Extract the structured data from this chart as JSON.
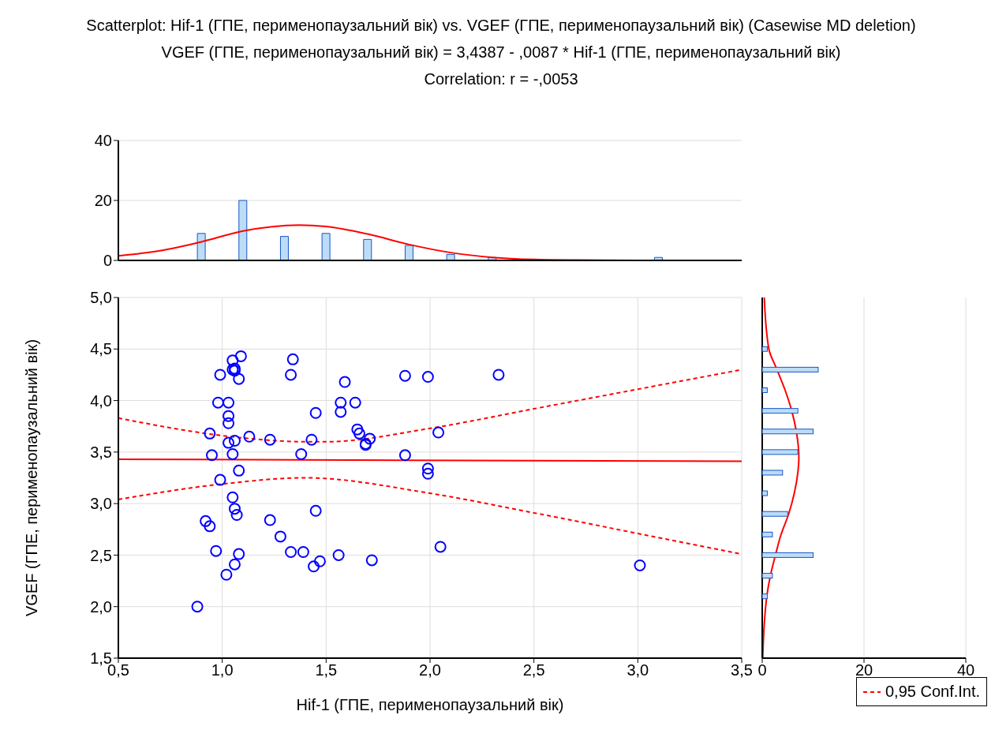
{
  "chart_data": [
    {
      "type": "bar",
      "title": "Scatterplot: Hif-1 (ГПЕ, перименопаузальний вік) vs. VGEF (ГПЕ, перименопаузальний вік) (Casewise MD deletion)",
      "subtitle": "VGEF (ГПЕ, перименопаузальний вік) = 3,4387 - ,0087  * Hif-1 (ГПЕ, перименопаузальний вік)",
      "annotations": [
        "Correlation: r = -,0053"
      ],
      "xlim": [
        0.5,
        3.5
      ],
      "xticks": [
        {
          "value": 0.5,
          "label": null
        },
        {
          "value": 1,
          "label": null
        },
        {
          "value": 1.5,
          "label": null
        },
        {
          "value": 2,
          "label": null
        },
        {
          "value": 2.5,
          "label": null
        },
        {
          "value": 3,
          "label": null
        },
        {
          "value": 3.5,
          "label": null
        }
      ],
      "ylim": [
        0,
        40
      ],
      "yticks": [
        0,
        20,
        40
      ],
      "grid": "y",
      "tick_labels": "y",
      "series": [
        {
          "color": "#bcdcf7",
          "x": [
            0.9,
            1.1,
            1.3,
            1.5,
            1.7,
            1.9,
            2.1,
            2.3,
            3.1
          ],
          "values": [
            9,
            20,
            8,
            9,
            7,
            5,
            2,
            1,
            1
          ]
        },
        {
          "type": "line",
          "color": "#ff0000",
          "x": [
            0.5,
            0.7,
            0.9,
            1.1,
            1.37,
            1.5,
            1.7,
            1.9,
            2.1,
            2.3,
            2.5,
            2.7,
            3.0,
            3.5
          ],
          "values": [
            1.5,
            3.2,
            6.2,
            9.8,
            11.8,
            11.3,
            8.8,
            5.3,
            2.6,
            1.0,
            0.3,
            0.1,
            0,
            0
          ]
        }
      ]
    },
    {
      "type": "scatter",
      "xlabel": "Hif-1 (ГПЕ, перименопаузальний вік)",
      "ylabel": "VGEF (ГПЕ, перименопаузальний вік)",
      "xlim": [
        0.5,
        3.5
      ],
      "xticks": [
        {
          "value": 0.5,
          "label": "0,5"
        },
        {
          "value": 1,
          "label": "1,0"
        },
        {
          "value": 1.5,
          "label": "1,5"
        },
        {
          "value": 2,
          "label": "2,0"
        },
        {
          "value": 2.5,
          "label": "2,5"
        },
        {
          "value": 3,
          "label": "3,0"
        },
        {
          "value": 3.5,
          "label": "3,5"
        }
      ],
      "ylim": [
        1.5,
        5
      ],
      "yticks": [
        {
          "value": 1.5,
          "label": "1,5"
        },
        {
          "value": 2,
          "label": "2,0"
        },
        {
          "value": 2.5,
          "label": "2,5"
        },
        {
          "value": 3,
          "label": "3,0"
        },
        {
          "value": 3.5,
          "label": "3,5"
        },
        {
          "value": 4,
          "label": "4,0"
        },
        {
          "value": 4.5,
          "label": "4,5"
        },
        {
          "value": 5,
          "label": "5,0"
        }
      ],
      "grid": true,
      "legend": "bottom right",
      "series": [
        {
          "color": "#0000ff",
          "marker": "circle",
          "x": [
            1.05,
            1.09,
            1.05,
            1.06,
            1.06,
            0.99,
            1.08,
            1.34,
            1.33,
            1.59,
            0.98,
            1.03,
            1.57,
            1.57,
            1.45,
            1.03,
            1.03,
            0.94,
            1.13,
            1.23,
            1.43,
            1.03,
            1.06,
            1.05,
            0.95,
            1.38,
            1.08,
            0.99,
            1.05,
            1.06,
            1.07,
            1.45,
            0.92,
            0.94,
            1.23,
            1.28,
            0.97,
            1.08,
            1.06,
            1.02,
            1.33,
            1.39,
            1.44,
            1.47,
            1.56,
            0.88,
            1.64,
            1.88,
            1.99,
            2.33,
            1.65,
            1.66,
            1.71,
            1.69,
            1.69,
            2.04,
            1.88,
            1.99,
            1.99,
            2.05,
            1.72,
            3.01
          ],
          "values": [
            4.39,
            4.43,
            4.3,
            4.31,
            4.29,
            4.25,
            4.21,
            4.4,
            4.25,
            4.18,
            3.98,
            3.98,
            3.98,
            3.89,
            3.88,
            3.85,
            3.78,
            3.68,
            3.65,
            3.62,
            3.62,
            3.59,
            3.61,
            3.48,
            3.47,
            3.48,
            3.32,
            3.23,
            3.06,
            2.95,
            2.89,
            2.93,
            2.83,
            2.78,
            2.84,
            2.68,
            2.54,
            2.51,
            2.41,
            2.31,
            2.53,
            2.53,
            2.39,
            2.44,
            2.5,
            2.0,
            3.98,
            4.24,
            4.23,
            4.25,
            3.72,
            3.68,
            3.63,
            3.58,
            3.57,
            3.69,
            3.47,
            3.34,
            3.29,
            2.58,
            2.45,
            2.4
          ]
        },
        {
          "type": "line",
          "color": "#ff0000",
          "x": [
            0.5,
            3.5
          ],
          "values": [
            3.43,
            3.41
          ]
        },
        {
          "type": "line",
          "name": "0,95 Conf.Int.",
          "color": "#ff0000",
          "line_style": "dashed",
          "x": [
            0.5,
            1.0,
            1.4,
            1.5,
            2.0,
            2.5,
            3.0,
            3.5
          ],
          "values": [
            3.83,
            3.66,
            3.6,
            3.6,
            3.73,
            3.92,
            4.11,
            4.3
          ]
        },
        {
          "type": "line",
          "color": "#ff0000",
          "line_style": "dashed",
          "x": [
            0.5,
            1.0,
            1.4,
            2.0,
            2.5,
            3.0,
            3.5
          ],
          "values": [
            3.04,
            3.19,
            3.25,
            3.1,
            2.91,
            2.71,
            2.51
          ]
        }
      ]
    },
    {
      "type": "bar",
      "orientation": "horizontal",
      "xlim": [
        0,
        40
      ],
      "xticks": [
        0,
        20,
        40
      ],
      "ylim": [
        1.5,
        5
      ],
      "yticks": [
        {
          "value": 1.5,
          "label": null
        },
        {
          "value": 2,
          "label": null
        },
        {
          "value": 2.5,
          "label": null
        },
        {
          "value": 3,
          "label": null
        },
        {
          "value": 3.5,
          "label": null
        },
        {
          "value": 4,
          "label": null
        },
        {
          "value": 4.5,
          "label": null
        },
        {
          "value": 5,
          "label": null
        }
      ],
      "grid": "x",
      "tick_labels": "x",
      "series": [
        {
          "color": "#bcdcf7",
          "x": [
            4.5,
            4.3,
            4.1,
            3.9,
            3.7,
            3.5,
            3.3,
            3.1,
            2.9,
            2.7,
            2.5,
            2.3,
            2.1
          ],
          "values": [
            1,
            11,
            1,
            7,
            10,
            7,
            4,
            1,
            5,
            2,
            10,
            2,
            1
          ]
        },
        {
          "type": "line",
          "color": "#ff0000",
          "x": [
            5.0,
            4.5,
            4.3,
            4.1,
            3.9,
            3.7,
            3.45,
            3.3,
            3.1,
            2.9,
            2.7,
            2.5,
            2.3,
            2.1,
            1.9,
            1.5
          ],
          "values": [
            0.4,
            1.3,
            2.9,
            4.5,
            5.8,
            6.7,
            7.2,
            7.0,
            6.3,
            5.2,
            3.7,
            2.6,
            1.6,
            0.9,
            0.5,
            0.1
          ]
        }
      ]
    }
  ]
}
